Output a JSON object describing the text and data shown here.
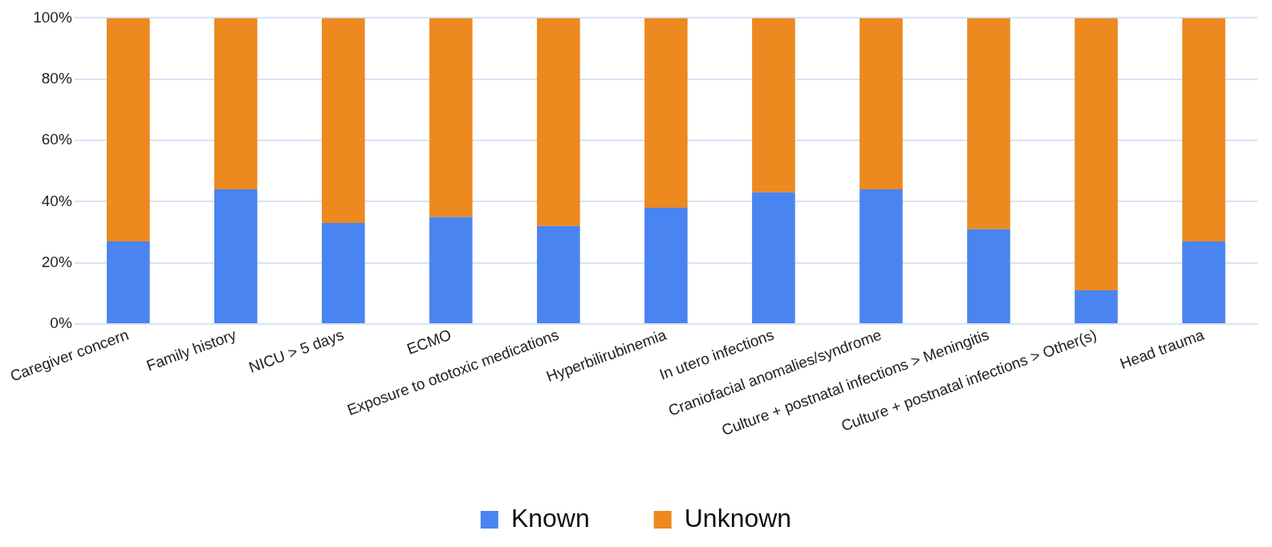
{
  "chart_data": {
    "type": "bar",
    "stacked": true,
    "categories": [
      "Caregiver concern",
      "Family history",
      "NICU > 5 days",
      "ECMO",
      "Exposure to ototoxic medications",
      "Hyperbilirubinemia",
      "In utero infections",
      "Craniofacial anomalies/syndrome",
      "Culture + postnatal infections > Meningitis",
      "Culture + postnatal infections > Other(s)",
      "Head trauma"
    ],
    "series": [
      {
        "name": "Known",
        "color": "#4a84f0",
        "values": [
          27,
          44,
          33,
          35,
          32,
          38,
          43,
          44,
          31,
          11,
          27
        ]
      },
      {
        "name": "Unknown",
        "color": "#ec891f",
        "values": [
          73,
          56,
          67,
          65,
          68,
          62,
          57,
          56,
          69,
          89,
          73
        ]
      }
    ],
    "ylim": [
      0,
      100
    ],
    "yticks": [
      {
        "value": 0,
        "label": "0%"
      },
      {
        "value": 20,
        "label": "20%"
      },
      {
        "value": 40,
        "label": "40%"
      },
      {
        "value": 60,
        "label": "60%"
      },
      {
        "value": 80,
        "label": "80%"
      },
      {
        "value": 100,
        "label": "100%"
      }
    ],
    "grid": "y",
    "legend": "bottom"
  }
}
